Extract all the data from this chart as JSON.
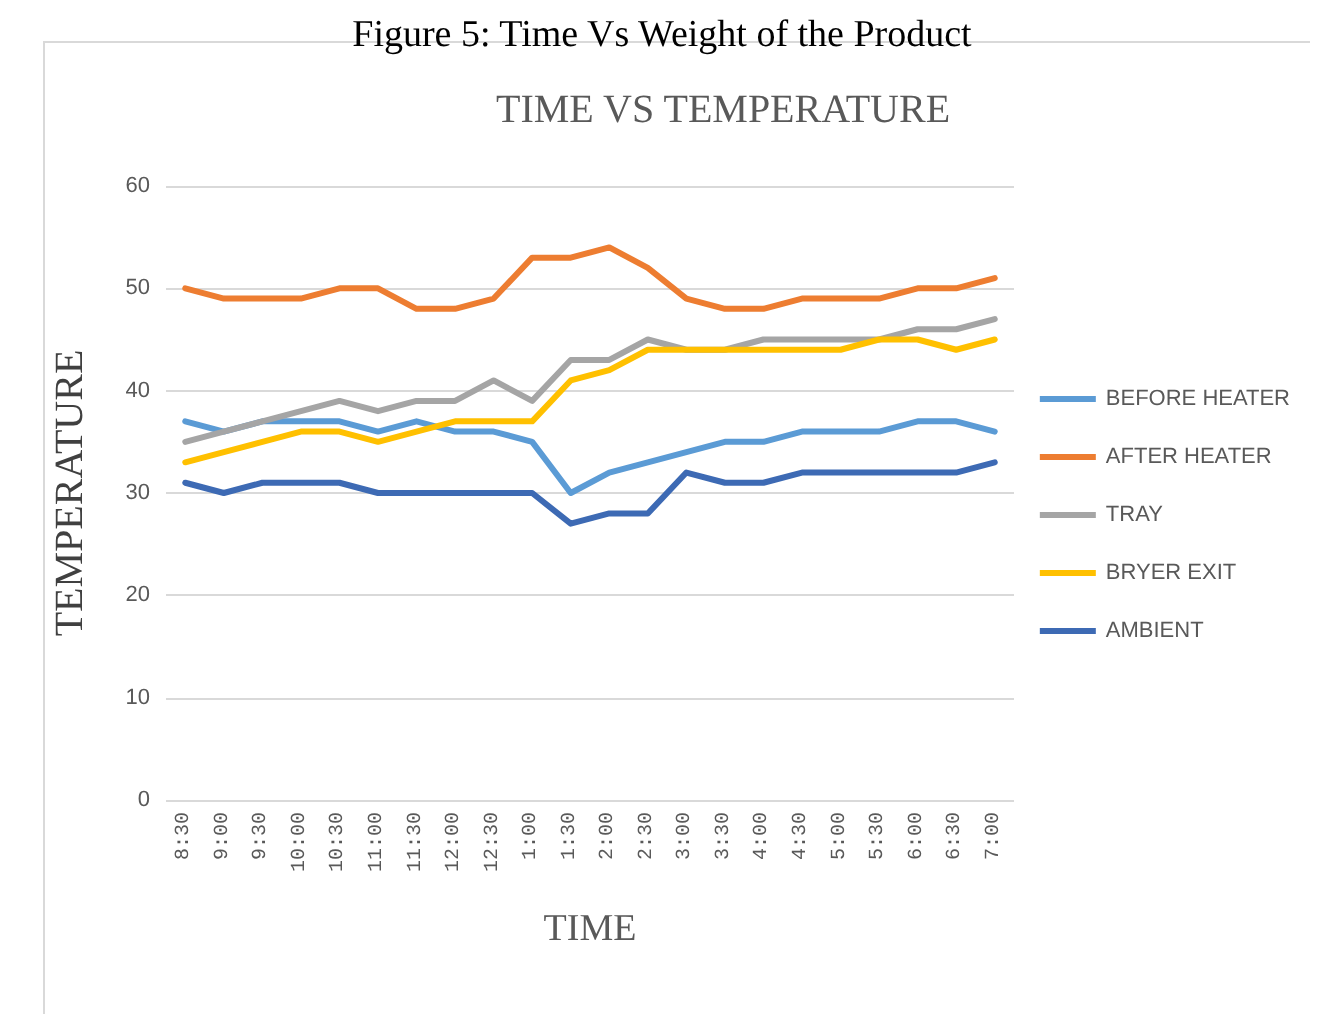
{
  "chart_data": {
    "type": "line",
    "title": "TIME VS TEMPERATURE",
    "xlabel": "TIME",
    "ylabel": "TEMPERATURE",
    "annotations": [
      "Figure 5: Time Vs Weight of the Product"
    ],
    "categories": [
      "8:30",
      "9:00",
      "9:30",
      "10:00",
      "10:30",
      "11:00",
      "11:30",
      "12:00",
      "12:30",
      "1:00",
      "1:30",
      "2:00",
      "2:30",
      "3:00",
      "3:30",
      "4:00",
      "4:30",
      "5:00",
      "5:30",
      "6:00",
      "6:30",
      "7:00"
    ],
    "series": [
      {
        "name": "BEFORE HEATER",
        "color": "#5b9bd5",
        "values": [
          37,
          36,
          37,
          37,
          37,
          36,
          37,
          36,
          36,
          35,
          30,
          32,
          33,
          34,
          35,
          35,
          36,
          36,
          36,
          37,
          37,
          36
        ]
      },
      {
        "name": "AFTER HEATER",
        "color": "#ed7d31",
        "values": [
          50,
          49,
          49,
          49,
          50,
          50,
          48,
          48,
          49,
          53,
          53,
          54,
          52,
          49,
          48,
          48,
          49,
          49,
          49,
          50,
          50,
          51
        ]
      },
      {
        "name": "TRAY",
        "color": "#a5a5a5",
        "values": [
          35,
          36,
          37,
          38,
          39,
          38,
          39,
          39,
          41,
          39,
          43,
          43,
          45,
          44,
          44,
          45,
          45,
          45,
          45,
          46,
          46,
          47
        ]
      },
      {
        "name": "BRYER EXIT",
        "color": "#ffc000",
        "values": [
          33,
          34,
          35,
          36,
          36,
          35,
          36,
          37,
          37,
          37,
          41,
          42,
          44,
          44,
          44,
          44,
          44,
          44,
          45,
          45,
          44,
          45
        ]
      },
      {
        "name": "AMBIENT",
        "color": "#3d6ab4",
        "values": [
          31,
          30,
          31,
          31,
          31,
          30,
          30,
          30,
          30,
          30,
          27,
          28,
          28,
          32,
          31,
          31,
          32,
          32,
          32,
          32,
          32,
          33
        ]
      }
    ],
    "ylim": [
      0,
      60
    ],
    "yticks": [
      0,
      10,
      20,
      30,
      40,
      50,
      60
    ],
    "grid": "y",
    "legend": "right",
    "marker": "none",
    "line_style": "solid"
  }
}
